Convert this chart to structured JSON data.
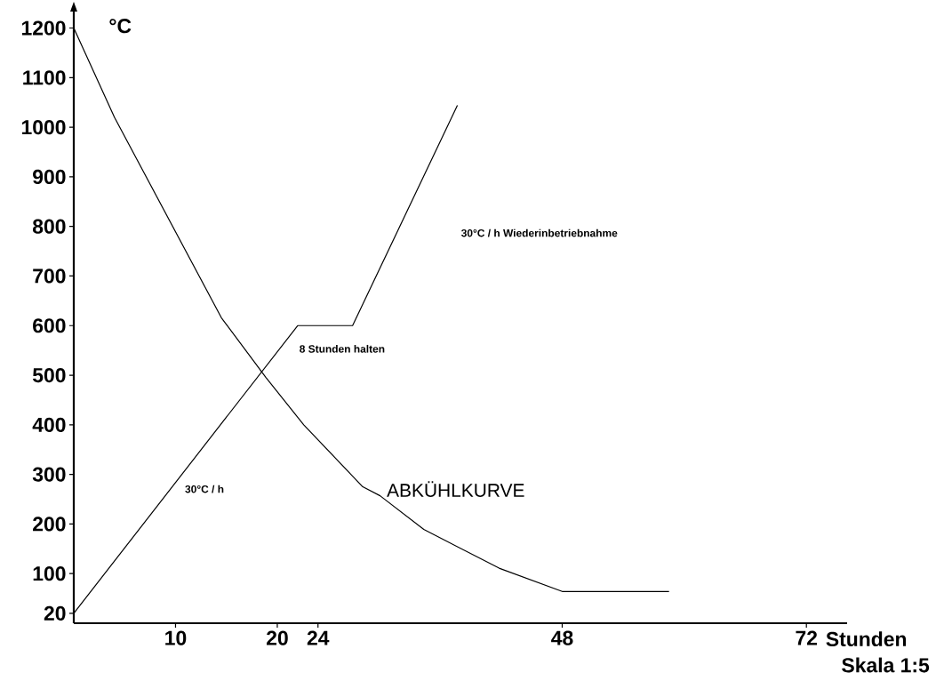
{
  "chart_data": {
    "type": "line",
    "xlabel": "Stunden",
    "ylabel": "°C",
    "xlim": [
      0,
      76
    ],
    "xticks": [
      10,
      20,
      24,
      48,
      72
    ],
    "ylim": [
      0,
      1235
    ],
    "yticks": [
      20,
      100,
      200,
      300,
      400,
      500,
      600,
      700,
      800,
      900,
      1000,
      1100,
      1200
    ],
    "series": [
      {
        "color": "#000000",
        "x": [
          0,
          4,
          14.5,
          18.9,
          22.6,
          28.4,
          30.1,
          34.4,
          41.8,
          48,
          58.5
        ],
        "values": [
          1200,
          1020,
          616,
          495,
          400,
          275,
          257,
          189,
          111,
          64,
          64
        ]
      },
      {
        "color": "#000000",
        "x": [
          0,
          22,
          27.4,
          37.7
        ],
        "values": [
          20,
          600,
          600,
          1044
        ]
      }
    ],
    "annotations": [
      "30°C / h",
      "8 Stunden halten",
      "30°C / h   Wiederinbetriebnahme",
      "ABKÜHLKURVE",
      "Skala 1:5"
    ]
  }
}
